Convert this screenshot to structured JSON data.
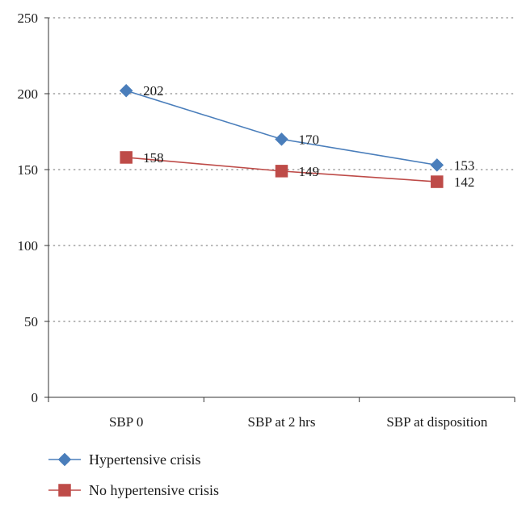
{
  "chart_data": {
    "type": "line",
    "title": "",
    "xlabel": "",
    "ylabel": "",
    "categories": [
      "SBP 0",
      "SBP at 2 hrs",
      "SBP at disposition"
    ],
    "ylim": [
      0,
      250
    ],
    "yticks": [
      0,
      50,
      100,
      150,
      200,
      250
    ],
    "grid": "horizontal dotted",
    "legend_position": "bottom-left",
    "series": [
      {
        "name": "Hypertensive crisis",
        "marker": "diamond",
        "color": "#4a7ebb",
        "values": [
          202,
          170,
          153
        ],
        "labels": [
          "202",
          "170",
          "153"
        ]
      },
      {
        "name": "No hypertensive crisis",
        "marker": "square",
        "color": "#be4b48",
        "values": [
          158,
          149,
          142
        ],
        "labels": [
          "158",
          "149",
          "142"
        ]
      }
    ]
  }
}
